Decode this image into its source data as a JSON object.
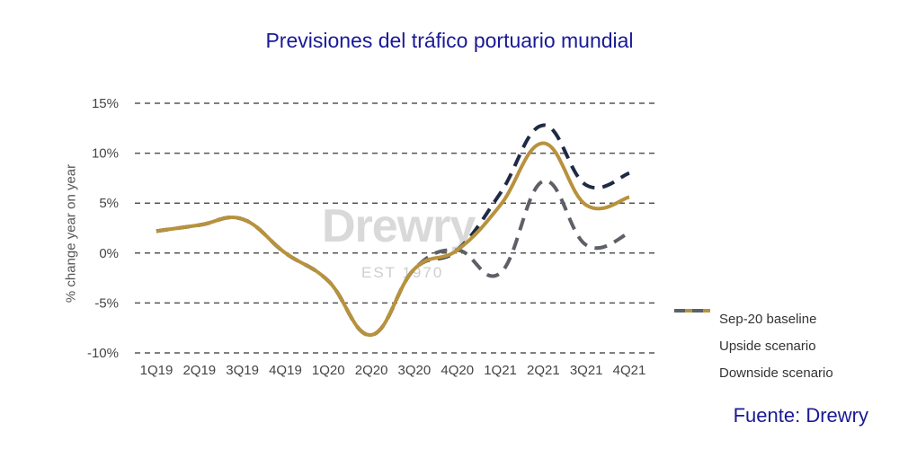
{
  "title": "Previsiones del tráfico portuario mundial",
  "source": "Fuente: Drewry",
  "watermark": {
    "name": "Drewry",
    "est": "EST 1970"
  },
  "colors": {
    "baseline": "#b8923c",
    "upside": "#1f2a44",
    "downside": "#5d6066",
    "grid": "#555555",
    "title": "#1a1a96"
  },
  "chart_data": {
    "type": "line",
    "title": "Previsiones del tráfico portuario mundial",
    "xlabel": "",
    "ylabel": "% change year on year",
    "categories": [
      "1Q19",
      "2Q19",
      "3Q19",
      "4Q19",
      "1Q20",
      "2Q20",
      "3Q20",
      "4Q20",
      "1Q21",
      "2Q21",
      "3Q21",
      "4Q21"
    ],
    "yticks": [
      "15%",
      "10%",
      "5%",
      "0%",
      "-5%",
      "-10%"
    ],
    "ytick_values": [
      15,
      10,
      5,
      0,
      -5,
      -10
    ],
    "ylim": [
      -10,
      15
    ],
    "grid": "dashed horizontal",
    "legend_position": "bottom-right",
    "series": [
      {
        "name": "Downside scenario",
        "style": "dashed",
        "color": "#5d6066",
        "values": [
          2.2,
          2.8,
          3.4,
          0.0,
          -2.8,
          -8.2,
          -1.6,
          0.3,
          -2.0,
          7.2,
          0.8,
          2.0
        ]
      },
      {
        "name": "Upside scenario",
        "style": "dashed",
        "color": "#1f2a44",
        "values": [
          2.2,
          2.8,
          3.4,
          0.0,
          -2.8,
          -8.2,
          -1.6,
          0.3,
          6.0,
          12.8,
          6.8,
          8.0
        ]
      },
      {
        "name": "Sep-20 baseline",
        "style": "solid",
        "color": "#b8923c",
        "values": [
          2.2,
          2.8,
          3.4,
          0.0,
          -2.8,
          -8.2,
          -1.6,
          0.3,
          4.8,
          11.0,
          4.8,
          5.6
        ]
      }
    ],
    "legend": [
      "Sep-20 baseline",
      "Upside scenario",
      "Downside scenario"
    ]
  }
}
